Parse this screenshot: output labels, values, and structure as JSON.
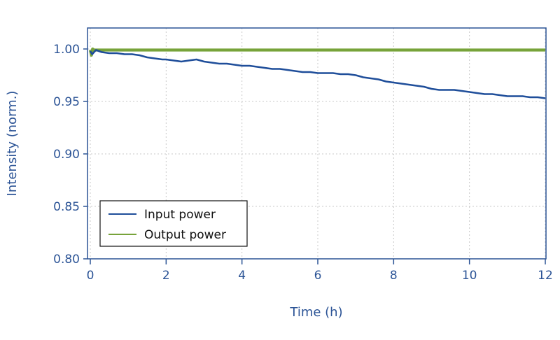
{
  "chart_data": {
    "type": "line",
    "xlabel": "Time (h)",
    "ylabel": "Intensity (norm.)",
    "xlim": [
      0,
      12
    ],
    "ylim": [
      0.8,
      1.02
    ],
    "x_ticks": [
      0,
      2,
      4,
      6,
      8,
      10,
      12
    ],
    "x_tick_labels": [
      "0",
      "2",
      "4",
      "6",
      "8",
      "10",
      "12"
    ],
    "y_ticks": [
      0.8,
      0.85,
      0.9,
      0.95,
      1.0
    ],
    "y_tick_labels": [
      "0.80",
      "0.85",
      "0.90",
      "0.95",
      "1.00"
    ],
    "grid": true,
    "legend_position": "bottom-left",
    "colors": {
      "axis": "#2c5496",
      "grid": "#c8c8c8"
    },
    "series": [
      {
        "name": "Input power",
        "color": "#1f4e9a",
        "x": [
          0,
          0.05,
          0.15,
          0.3,
          0.5,
          0.7,
          0.9,
          1.1,
          1.3,
          1.5,
          1.7,
          1.9,
          2.0,
          2.2,
          2.4,
          2.6,
          2.8,
          3.0,
          3.2,
          3.4,
          3.6,
          3.8,
          4.0,
          4.2,
          4.4,
          4.6,
          4.8,
          5.0,
          5.2,
          5.4,
          5.6,
          5.8,
          6.0,
          6.2,
          6.4,
          6.6,
          6.8,
          7.0,
          7.2,
          7.4,
          7.6,
          7.8,
          8.0,
          8.2,
          8.4,
          8.6,
          8.8,
          9.0,
          9.2,
          9.4,
          9.6,
          9.8,
          10.0,
          10.2,
          10.4,
          10.6,
          10.8,
          11.0,
          11.2,
          11.4,
          11.6,
          11.8,
          12.0
        ],
        "y": [
          0.998,
          0.995,
          0.999,
          0.997,
          0.996,
          0.996,
          0.995,
          0.995,
          0.994,
          0.992,
          0.991,
          0.99,
          0.99,
          0.989,
          0.988,
          0.989,
          0.99,
          0.988,
          0.987,
          0.986,
          0.986,
          0.985,
          0.984,
          0.984,
          0.983,
          0.982,
          0.981,
          0.981,
          0.98,
          0.979,
          0.978,
          0.978,
          0.977,
          0.977,
          0.977,
          0.976,
          0.976,
          0.975,
          0.973,
          0.972,
          0.971,
          0.969,
          0.968,
          0.967,
          0.966,
          0.965,
          0.964,
          0.962,
          0.961,
          0.961,
          0.961,
          0.96,
          0.959,
          0.958,
          0.957,
          0.957,
          0.956,
          0.955,
          0.955,
          0.955,
          0.954,
          0.954,
          0.953
        ]
      },
      {
        "name": "Output power",
        "color": "#77a33a",
        "x": [
          0,
          0.03,
          0.06,
          0.1,
          0.2,
          1.0,
          2.0,
          4.0,
          6.0,
          8.0,
          10.0,
          12.0
        ],
        "y": [
          0.999,
          0.994,
          1.0,
          0.999,
          0.999,
          0.999,
          0.999,
          0.999,
          0.999,
          0.999,
          0.999,
          0.999
        ]
      }
    ]
  }
}
